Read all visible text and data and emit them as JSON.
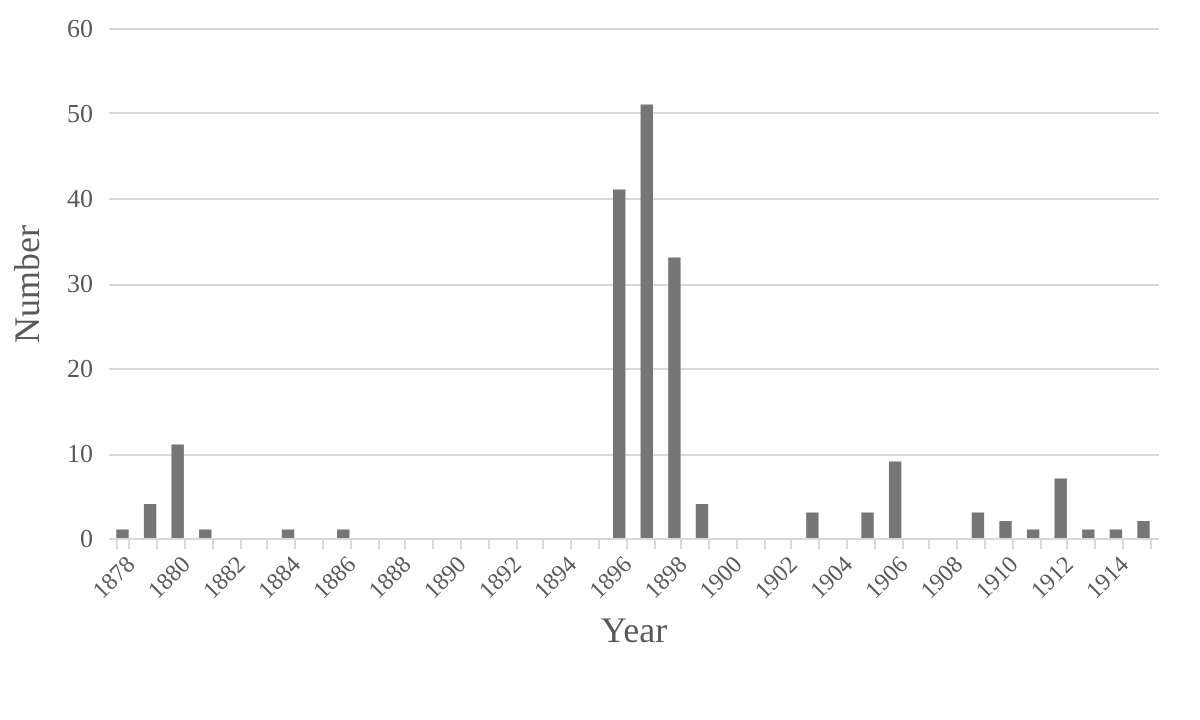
{
  "chart_data": {
    "type": "bar",
    "xlabel": "Year",
    "ylabel": "Number",
    "categories": [
      "1878",
      null,
      "1880",
      null,
      "1882",
      null,
      "1884",
      null,
      "1886",
      null,
      "1888",
      null,
      "1890",
      null,
      "1892",
      null,
      "1894",
      null,
      "1896",
      null,
      "1898",
      null,
      "1900",
      null,
      "1902",
      null,
      "1904",
      null,
      "1906",
      null,
      "1908",
      null,
      "1910",
      null,
      "1912",
      null,
      "1914",
      null
    ],
    "values": [
      1,
      4,
      11,
      1,
      0,
      0,
      1,
      0,
      1,
      0,
      0,
      0,
      0,
      0,
      0,
      0,
      0,
      0,
      41,
      51,
      33,
      4,
      0,
      0,
      0,
      3,
      0,
      3,
      9,
      0,
      0,
      3,
      2,
      1,
      7,
      1,
      1,
      2
    ],
    "color": "#767676",
    "ylim": [
      0,
      60
    ],
    "yticks": [
      0,
      10,
      20,
      30,
      40,
      50,
      60
    ],
    "grid": "y"
  }
}
